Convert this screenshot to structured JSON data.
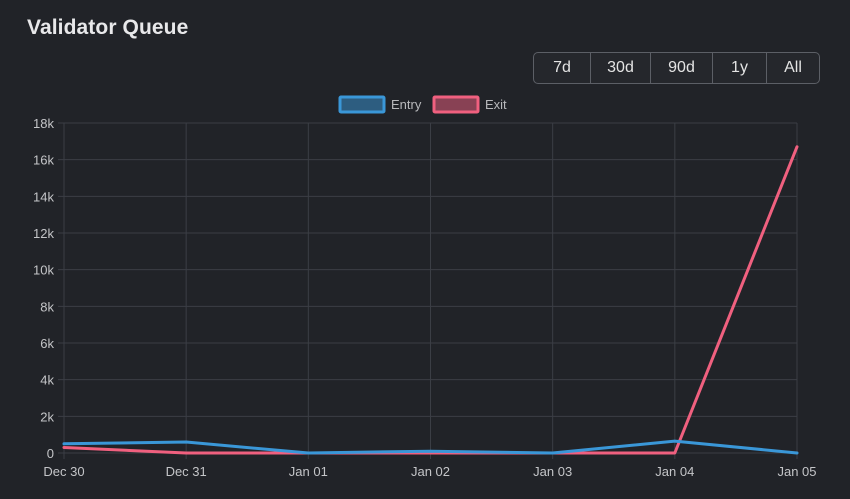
{
  "card": {
    "title": "Validator Queue",
    "range_buttons": [
      "7d",
      "30d",
      "90d",
      "1y",
      "All"
    ]
  },
  "chart_data": {
    "type": "line",
    "x": [
      "Dec 30",
      "Dec 31",
      "Jan 01",
      "Jan 02",
      "Jan 03",
      "Jan 04",
      "Jan 05"
    ],
    "ylim": [
      0,
      18000
    ],
    "y_ticks": [
      "0",
      "2k",
      "4k",
      "6k",
      "8k",
      "10k",
      "12k",
      "14k",
      "16k",
      "18k"
    ],
    "y_tick_values": [
      0,
      2000,
      4000,
      6000,
      8000,
      10000,
      12000,
      14000,
      16000,
      18000
    ],
    "grid": true,
    "legend": "top-center",
    "series": [
      {
        "name": "Entry",
        "color": "#3a97d8",
        "values": [
          500,
          600,
          0,
          100,
          0,
          650,
          0
        ]
      },
      {
        "name": "Exit",
        "color": "#f0607f",
        "values": [
          300,
          0,
          0,
          0,
          0,
          0,
          16700
        ]
      }
    ]
  }
}
